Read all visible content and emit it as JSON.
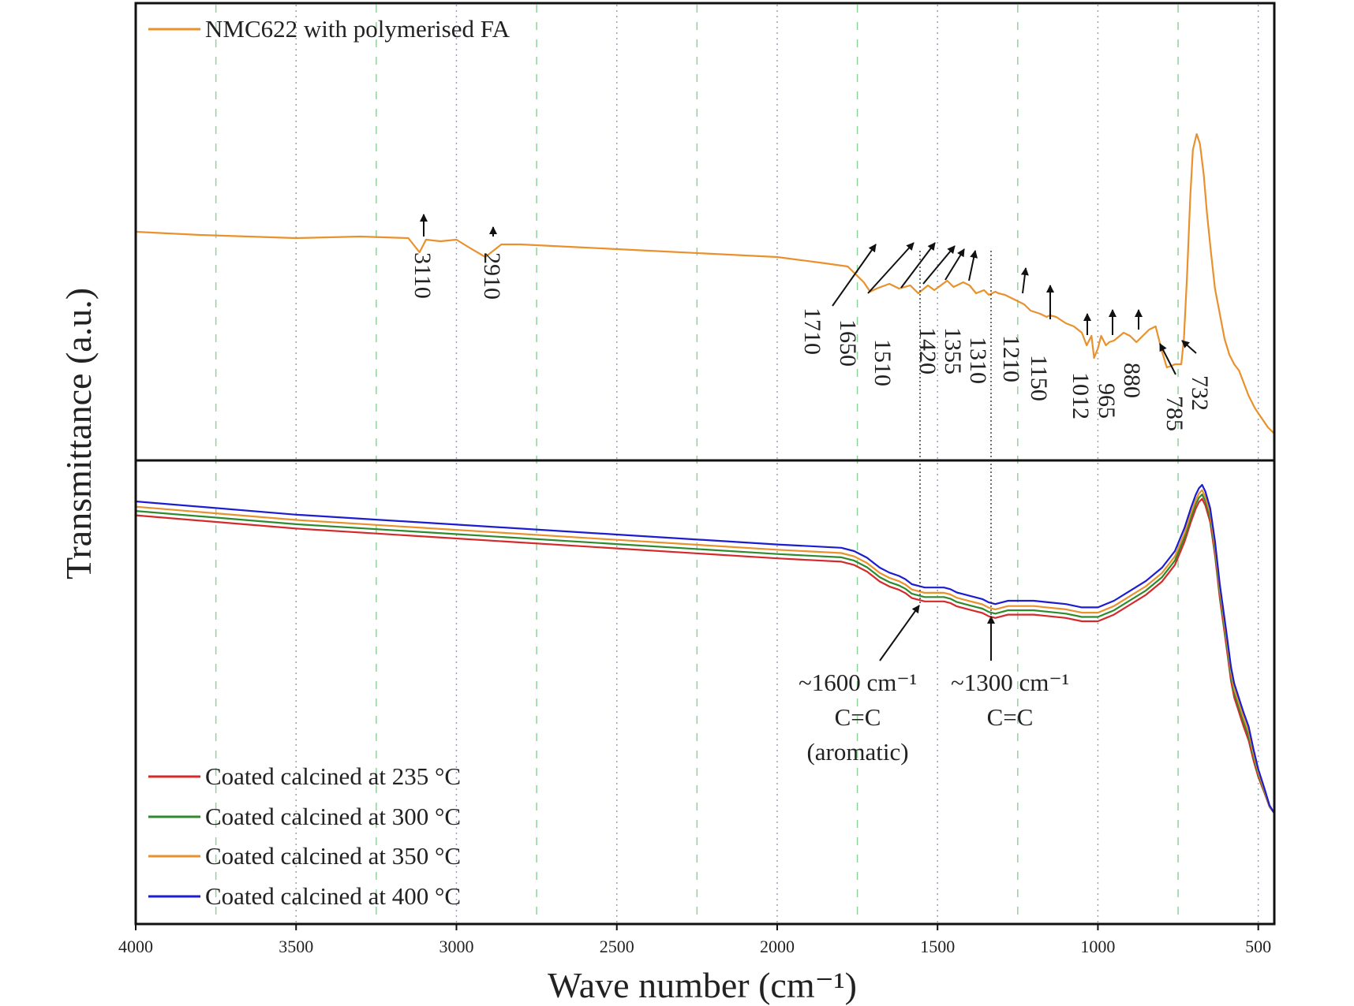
{
  "chart_data": {
    "type": "line",
    "xlabel": "Wave number (cm⁻¹)",
    "ylabel": "Transmittance (a.u.)",
    "xlim": [
      4000,
      450
    ],
    "x_ticks": [
      "4000",
      "3500",
      "3000",
      "2500",
      "2000",
      "1500",
      "1000",
      "500"
    ],
    "gridlines_dotted": [
      3500,
      3000,
      2500,
      2000,
      1500,
      1000,
      500
    ],
    "gridlines_dashed": [
      3750,
      3250,
      2750,
      2250,
      1750,
      1250,
      750
    ],
    "panels": [
      {
        "name": "top",
        "ylim": [
          0,
          100
        ],
        "legend": [
          {
            "label": "NMC622 with polymerised FA",
            "color": "#e8912d"
          }
        ],
        "series": [
          {
            "name": "NMC622 with polymerised FA",
            "color": "#e8912d",
            "x": [
              4000,
              3800,
              3500,
              3300,
              3150,
              3115,
              3095,
              3050,
              3000,
              2960,
              2910,
              2860,
              2800,
              2600,
              2400,
              2200,
              2000,
              1850,
              1780,
              1730,
              1710,
              1690,
              1650,
              1620,
              1585,
              1560,
              1530,
              1510,
              1490,
              1470,
              1450,
              1430,
              1420,
              1400,
              1380,
              1355,
              1340,
              1320,
              1310,
              1290,
              1260,
              1230,
              1210,
              1180,
              1160,
              1150,
              1130,
              1100,
              1075,
              1050,
              1035,
              1020,
              1012,
              1000,
              990,
              975,
              965,
              950,
              920,
              900,
              880,
              860,
              840,
              820,
              800,
              785,
              770,
              760,
              740,
              732,
              722,
              712,
              704,
              692,
              682,
              670,
              660,
              648,
              635,
              620,
              605,
              590,
              575,
              560,
              545,
              530,
              510,
              490,
              470,
              450
            ],
            "y": [
              64,
              63,
              62,
              62.5,
              62,
              57.5,
              61.5,
              61,
              61.5,
              59,
              56,
              60,
              60,
              59,
              58,
              57,
              56,
              54,
              53,
              48,
              45,
              46,
              47.5,
              46,
              47,
              44.5,
              47,
              45.5,
              47,
              48.5,
              46.5,
              47.5,
              48,
              47,
              44.5,
              45.5,
              44,
              45,
              44.5,
              44,
              42.5,
              41,
              39,
              38,
              37,
              37.5,
              37,
              35,
              34,
              32,
              28,
              31,
              24,
              27,
              31,
              28,
              29,
              29.5,
              32,
              31,
              29,
              31,
              33,
              34,
              26,
              21,
              21.5,
              22,
              22,
              30,
              50,
              75,
              90,
              95,
              92,
              82,
              70,
              58,
              46,
              38,
              30,
              25,
              22,
              20,
              16,
              12,
              8,
              5,
              2,
              0
            ]
          }
        ],
        "peak_labels": [
          "3110",
          "2910",
          "1710",
          "1650",
          "1510",
          "1420",
          "1355",
          "1310",
          "1210",
          "1150",
          "1012",
          "965",
          "880",
          "785",
          "732"
        ]
      },
      {
        "name": "bottom",
        "ylim": [
          0,
          100
        ],
        "legend": [
          {
            "label": "Coated calcined at 235 °C",
            "color": "#d42a2a"
          },
          {
            "label": "Coated calcined at 300 °C",
            "color": "#2e8a2e"
          },
          {
            "label": "Coated calcined at 350 °C",
            "color": "#e8912d"
          },
          {
            "label": "Coated calcined at 400 °C",
            "color": "#1c1cd0"
          }
        ],
        "base_curve": {
          "x": [
            4000,
            3500,
            3000,
            2500,
            2000,
            1900,
            1800,
            1760,
            1720,
            1700,
            1680,
            1650,
            1620,
            1600,
            1580,
            1560,
            1540,
            1500,
            1480,
            1460,
            1440,
            1420,
            1400,
            1380,
            1360,
            1340,
            1320,
            1300,
            1280,
            1250,
            1200,
            1150,
            1100,
            1050,
            1000,
            950,
            900,
            850,
            800,
            760,
            730,
            710,
            695,
            685,
            675,
            665,
            650,
            635,
            620,
            600,
            585,
            575,
            565,
            555,
            545,
            530,
            515,
            500,
            480,
            465,
            450
          ],
          "y": [
            92,
            88,
            85,
            82,
            79,
            78.5,
            78,
            77,
            75,
            73.5,
            72,
            70.5,
            69.5,
            68.5,
            67,
            66.5,
            66,
            66,
            66,
            65.5,
            64.5,
            64,
            63.5,
            63,
            62.5,
            61.5,
            61,
            61.5,
            62,
            62,
            62,
            61.5,
            61,
            60,
            60,
            62,
            65,
            68,
            72,
            77,
            84,
            90,
            94,
            96,
            97,
            95,
            90,
            80,
            67,
            53,
            42,
            37,
            34,
            31,
            28,
            24,
            18,
            13,
            8,
            4,
            2
          ]
        },
        "series": [
          {
            "name": "Coated calcined at 235 °C",
            "color": "#d42a2a",
            "offset": 0
          },
          {
            "name": "Coated calcined at 300 °C",
            "color": "#2e8a2e",
            "offset": 1.3
          },
          {
            "name": "Coated calcined at 350 °C",
            "color": "#e8912d",
            "offset": 2.6
          },
          {
            "name": "Coated calcined at 400 °C",
            "color": "#1c1cd0",
            "offset": 4.2
          }
        ],
        "annotations": [
          {
            "lines": [
              "~1600 cm⁻¹",
              "C=C",
              "(aromatic)"
            ],
            "at_x": 1555
          },
          {
            "lines": [
              "~1300 cm⁻¹",
              "C=C"
            ],
            "at_x": 1335
          }
        ]
      }
    ]
  }
}
